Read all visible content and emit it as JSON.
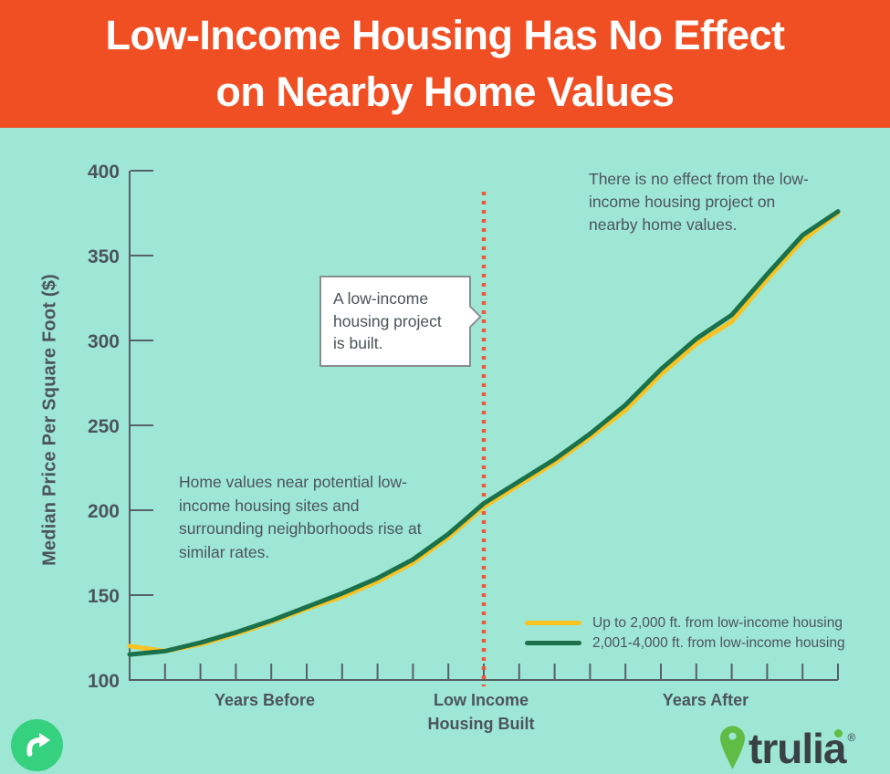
{
  "colors": {
    "header_bg": "#F04E23",
    "bg": "#9EE7D5",
    "text": "#4C545B",
    "axis": "#566066",
    "event": "#F2573C",
    "share": "#36D17E",
    "logo_green": "#5FBD45",
    "logo_text": "#3A4145",
    "callout_border": "#878D91"
  },
  "header": {
    "title_line1": "Low-Income Housing Has No Effect",
    "title_line2": "on Nearby Home Values"
  },
  "chart_data": {
    "type": "line",
    "title": "Low-Income Housing Has No Effect on Nearby Home Values",
    "ylabel": "Median Price Per Square Foot ($)",
    "ylim": [
      100,
      400
    ],
    "yticks": [
      100,
      150,
      200,
      250,
      300,
      350,
      400
    ],
    "grid": false,
    "legend_position": "lower-right",
    "x_unit": "years relative to low-income housing built",
    "x": [
      -10,
      -9,
      -8,
      -7,
      -6,
      -5,
      -4,
      -3,
      -2,
      -1,
      0,
      1,
      2,
      3,
      4,
      5,
      6,
      7,
      8,
      9,
      10
    ],
    "event_line": {
      "x": 0,
      "color": "#F2573C",
      "style": "dotted"
    },
    "x_axis_sections": {
      "before": "Years Before",
      "event_line1": "Low Income",
      "event_line2": "Housing Built",
      "after": "Years After"
    },
    "series": [
      {
        "name": "Up to 2,000 ft. from low-income housing",
        "color": "#F9C322",
        "values": [
          120,
          117,
          121,
          127,
          134,
          142,
          149,
          158,
          169,
          184,
          202,
          215,
          228,
          243,
          259,
          280,
          298,
          311,
          336,
          359,
          375
        ]
      },
      {
        "name": "2,001-4,000 ft. from low-income housing",
        "color": "#1A714A",
        "values": [
          115,
          117,
          122,
          128,
          135,
          143,
          151,
          160,
          171,
          186,
          204,
          217,
          230,
          245,
          262,
          283,
          301,
          315,
          339,
          362,
          376
        ]
      }
    ],
    "annotations": [
      "There is no effect from the low-income housing project on nearby home values.",
      "A low-income housing project is built.",
      "Home values near potential low-income housing sites and surrounding neighborhoods rise at similar rates."
    ]
  },
  "annotations": {
    "top_right": "There is no effect from the low-income housing project on nearby home values.",
    "callout": "A low-income housing project is built.",
    "mid_left": "Home values near potential low-income housing sites and surrounding neighborhoods rise at similar rates."
  },
  "footer": {
    "logo_text": "trulia",
    "registered_mark": "®"
  }
}
